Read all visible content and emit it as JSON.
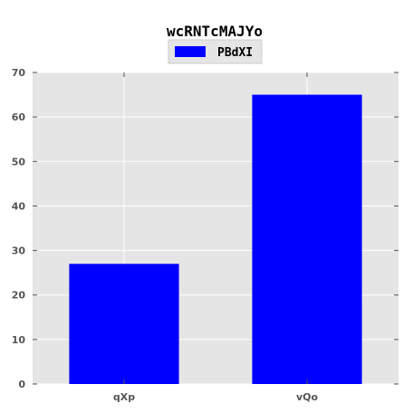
{
  "chart_data": {
    "type": "bar",
    "title": "wcRNTcMAJYo",
    "xlabel": "",
    "ylabel": "",
    "categories": [
      "qXp",
      "vQo"
    ],
    "series": [
      {
        "name": "PBdXI",
        "values": [
          27,
          65
        ],
        "color": "#0000ff"
      }
    ],
    "ylim": [
      0,
      70
    ],
    "yticks": [
      0,
      10,
      20,
      30,
      40,
      50,
      60,
      70
    ],
    "grid": true,
    "legend_position": "top-center",
    "background_color": "#e5e5e5",
    "grid_color": "#ffffff"
  }
}
